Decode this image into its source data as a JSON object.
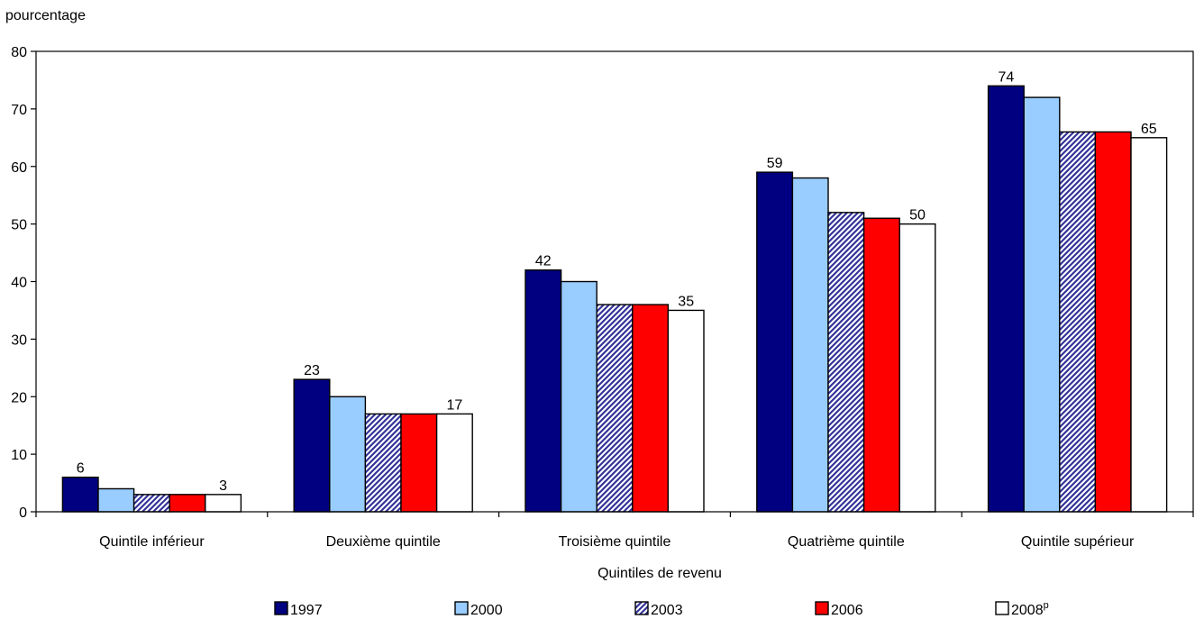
{
  "chart_data": {
    "type": "bar",
    "ylabel": "pourcentage",
    "xlabel": "Quintiles de revenu",
    "ylim": [
      0,
      80
    ],
    "yticks": [
      0,
      10,
      20,
      30,
      40,
      50,
      60,
      70,
      80
    ],
    "grid": false,
    "legend_position": "bottom",
    "categories": [
      "Quintile inférieur",
      "Deuxième quintile",
      "Troisième quintile",
      "Quatrième quintile",
      "Quintile supérieur"
    ],
    "series": [
      {
        "name": "1997",
        "values": [
          6,
          23,
          42,
          59,
          74
        ],
        "color": "#000080",
        "pattern": "solid",
        "labeled": true
      },
      {
        "name": "2000",
        "values": [
          4,
          20,
          40,
          58,
          72
        ],
        "color": "#99ccff",
        "pattern": "solid",
        "labeled": false
      },
      {
        "name": "2003",
        "values": [
          3,
          17,
          36,
          52,
          66
        ],
        "color": "#333399",
        "pattern": "diagonal-stripes",
        "labeled": false
      },
      {
        "name": "2006",
        "values": [
          3,
          17,
          36,
          51,
          66
        ],
        "color": "#ff0000",
        "pattern": "solid",
        "labeled": false
      },
      {
        "name": "2008",
        "name_superscript": "p",
        "values": [
          3,
          17,
          35,
          50,
          65
        ],
        "color": "#ffffff",
        "pattern": "solid",
        "labeled": true
      }
    ]
  }
}
